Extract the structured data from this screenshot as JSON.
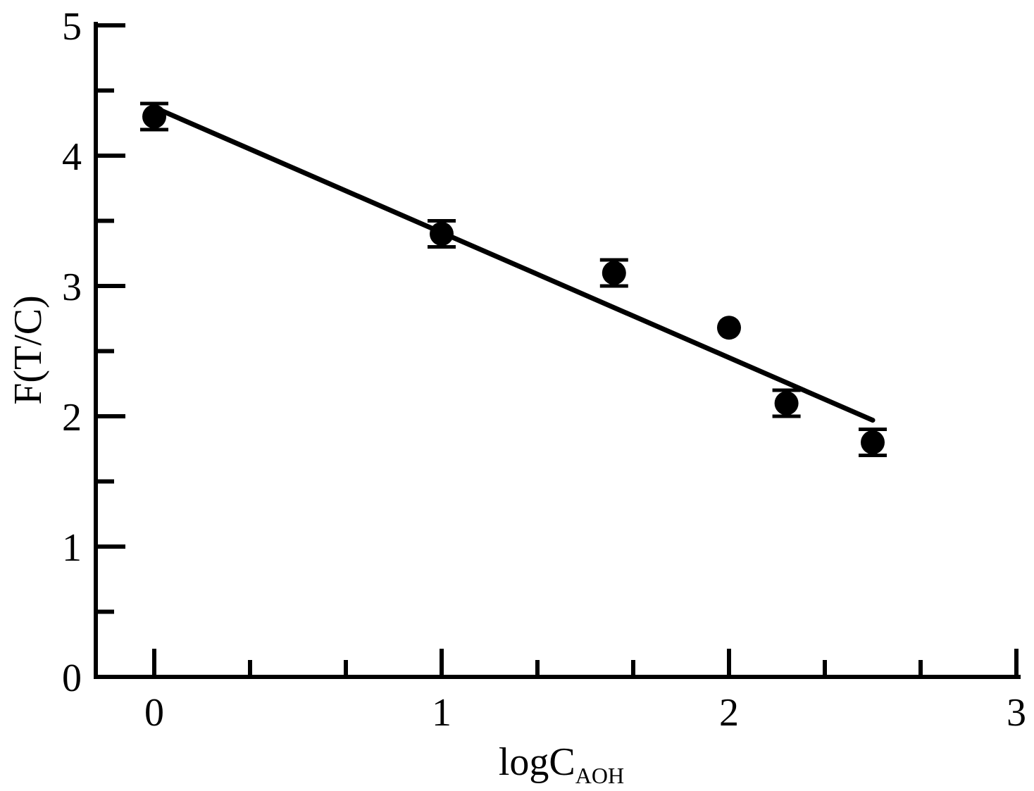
{
  "chart_data": {
    "type": "scatter",
    "title": "",
    "xlabel": "logC",
    "xlabel_subscript": "AOH",
    "ylabel": "F(T/C)",
    "xlim": [
      -0.2,
      3
    ],
    "ylim": [
      0,
      5
    ],
    "x_ticks": [
      0,
      1,
      2,
      3
    ],
    "y_ticks": [
      0,
      1,
      2,
      3,
      4,
      5
    ],
    "x_minor_step": 0.333,
    "y_minor_step": 0.5,
    "grid": false,
    "legend": "none",
    "series": [
      {
        "points": [
          {
            "x": 0.0,
            "y": 4.3,
            "err": 0.1
          },
          {
            "x": 1.0,
            "y": 3.4,
            "err": 0.1
          },
          {
            "x": 1.6,
            "y": 3.1,
            "err": 0.1
          },
          {
            "x": 2.0,
            "y": 2.68,
            "err": 0
          },
          {
            "x": 2.2,
            "y": 2.1,
            "err": 0.1
          },
          {
            "x": 2.5,
            "y": 1.8,
            "err": 0.1
          }
        ],
        "fit_line": {
          "x": [
            0.0,
            2.5
          ],
          "y": [
            4.37,
            1.97
          ]
        }
      }
    ],
    "colors": {
      "marker": "#000000",
      "line": "#000000",
      "axis": "#000000"
    }
  }
}
